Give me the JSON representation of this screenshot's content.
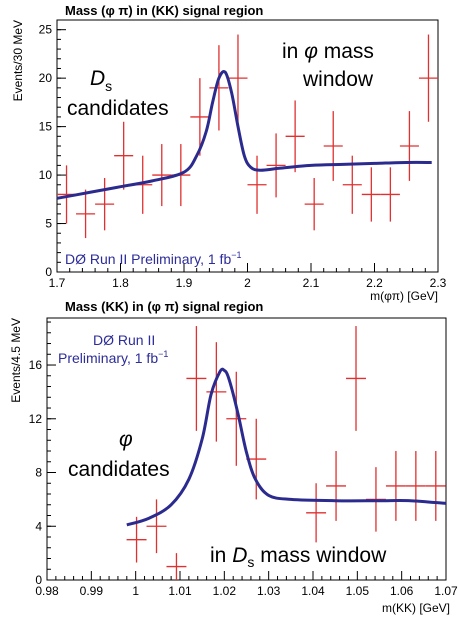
{
  "chart_data": [
    {
      "type": "scatter",
      "title": "Mass (φ π) in (KK) signal region",
      "xlabel": "m(φπ) [GeV]",
      "ylabel": "Events/30 MeV",
      "xlim": [
        1.7,
        2.3
      ],
      "ylim": [
        0,
        26
      ],
      "x_ticks": [
        "1.7",
        "1.8",
        "1.9",
        "2",
        "2.1",
        "2.2",
        "2.3"
      ],
      "y_ticks": [
        "0",
        "5",
        "10",
        "15",
        "20",
        "25"
      ],
      "annotations": {
        "cand_main": "D",
        "cand_sub": "s",
        "cand_word": "candidates",
        "window_line1_pre": "in ",
        "window_line1_sym": "φ",
        "window_line1_post": " mass",
        "window_line2": "window",
        "prelim_text": "DØ Run II Preliminary, 1 fb",
        "prelim_sup": "−1"
      },
      "series": [
        {
          "label": "data",
          "color": "#e03030",
          "x_halfwidth": 0.015,
          "points": [
            {
              "x": 1.715,
              "y": 8,
              "err": 3
            },
            {
              "x": 1.745,
              "y": 6,
              "err": 2.5
            },
            {
              "x": 1.775,
              "y": 7,
              "err": 2.7
            },
            {
              "x": 1.805,
              "y": 12,
              "err": 3.5
            },
            {
              "x": 1.835,
              "y": 9,
              "err": 3
            },
            {
              "x": 1.865,
              "y": 10,
              "err": 3.2
            },
            {
              "x": 1.895,
              "y": 10,
              "err": 3.2
            },
            {
              "x": 1.925,
              "y": 16,
              "err": 4
            },
            {
              "x": 1.955,
              "y": 19,
              "err": 4.4
            },
            {
              "x": 1.985,
              "y": 20,
              "err": 4.5
            },
            {
              "x": 2.015,
              "y": 9,
              "err": 3
            },
            {
              "x": 2.045,
              "y": 11,
              "err": 3.3
            },
            {
              "x": 2.075,
              "y": 14,
              "err": 3.7
            },
            {
              "x": 2.105,
              "y": 7,
              "err": 2.7
            },
            {
              "x": 2.135,
              "y": 13,
              "err": 3.6
            },
            {
              "x": 2.165,
              "y": 9,
              "err": 3
            },
            {
              "x": 2.195,
              "y": 8,
              "err": 2.8
            },
            {
              "x": 2.225,
              "y": 8,
              "err": 2.8
            },
            {
              "x": 2.255,
              "y": 13,
              "err": 3.6
            },
            {
              "x": 2.285,
              "y": 20,
              "err": 4.5
            }
          ]
        },
        {
          "label": "fit",
          "color": "#2b2b8f",
          "x": [
            1.7,
            1.75,
            1.8,
            1.85,
            1.9,
            1.92,
            1.935,
            1.945,
            1.955,
            1.965,
            1.975,
            1.985,
            1.995,
            2.005,
            2.02,
            2.05,
            2.1,
            2.15,
            2.2,
            2.25,
            2.29
          ],
          "y": [
            7.6,
            8.2,
            8.8,
            9.4,
            10.3,
            12.0,
            14.5,
            17.5,
            20.0,
            20.6,
            18.5,
            15.0,
            12.0,
            10.8,
            10.5,
            10.7,
            11.0,
            11.1,
            11.2,
            11.3,
            11.3
          ]
        }
      ]
    },
    {
      "type": "scatter",
      "title": "Mass (KK) in (φ π)  signal region",
      "xlabel": "m(KK) [GeV]",
      "ylabel": "Events/4.5 MeV",
      "xlim": [
        0.98,
        1.07
      ],
      "ylim": [
        0,
        19.5
      ],
      "x_ticks": [
        "0.98",
        "0.99",
        "1",
        "1.01",
        "1.02",
        "1.03",
        "1.04",
        "1.05",
        "1.06",
        "1.07"
      ],
      "y_ticks": [
        "0",
        "4",
        "8",
        "12",
        "16"
      ],
      "annotations": {
        "cand_sym": "φ",
        "cand_word": "candidates",
        "window_pre": "in ",
        "window_main": "D",
        "window_sub": "s",
        "window_post": " mass window",
        "prelim_line1": "DØ Run II",
        "prelim_line2": "Preliminary, 1 fb",
        "prelim_sup": "−1"
      },
      "series": [
        {
          "label": "data",
          "color": "#e03030",
          "x_halfwidth": 0.00225,
          "points": [
            {
              "x": 1.0002,
              "y": 3,
              "err": 1.7
            },
            {
              "x": 1.0047,
              "y": 4,
              "err": 2
            },
            {
              "x": 1.0092,
              "y": 1,
              "err": 1
            },
            {
              "x": 1.0137,
              "y": 15,
              "err": 3.9
            },
            {
              "x": 1.0182,
              "y": 14,
              "err": 3.7
            },
            {
              "x": 1.0227,
              "y": 12,
              "err": 3.5
            },
            {
              "x": 1.0272,
              "y": 9,
              "err": 3
            },
            {
              "x": 1.0407,
              "y": 5,
              "err": 2.2
            },
            {
              "x": 1.0452,
              "y": 7,
              "err": 2.6
            },
            {
              "x": 1.0497,
              "y": 15,
              "err": 3.9
            },
            {
              "x": 1.0542,
              "y": 6,
              "err": 2.4
            },
            {
              "x": 1.0587,
              "y": 7,
              "err": 2.6
            },
            {
              "x": 1.0632,
              "y": 7,
              "err": 2.6
            },
            {
              "x": 1.0677,
              "y": 7,
              "err": 2.6
            }
          ]
        },
        {
          "label": "fit",
          "color": "#2b2b8f",
          "x": [
            0.998,
            1.003,
            1.008,
            1.012,
            1.015,
            1.017,
            1.019,
            1.02,
            1.021,
            1.023,
            1.025,
            1.027,
            1.03,
            1.035,
            1.045,
            1.055,
            1.062,
            1.07
          ],
          "y": [
            4.1,
            4.6,
            5.6,
            7.5,
            10.5,
            13.8,
            15.5,
            15.6,
            15.0,
            12.5,
            9.5,
            7.5,
            6.3,
            6.0,
            5.9,
            5.9,
            5.9,
            5.7
          ]
        }
      ]
    }
  ]
}
